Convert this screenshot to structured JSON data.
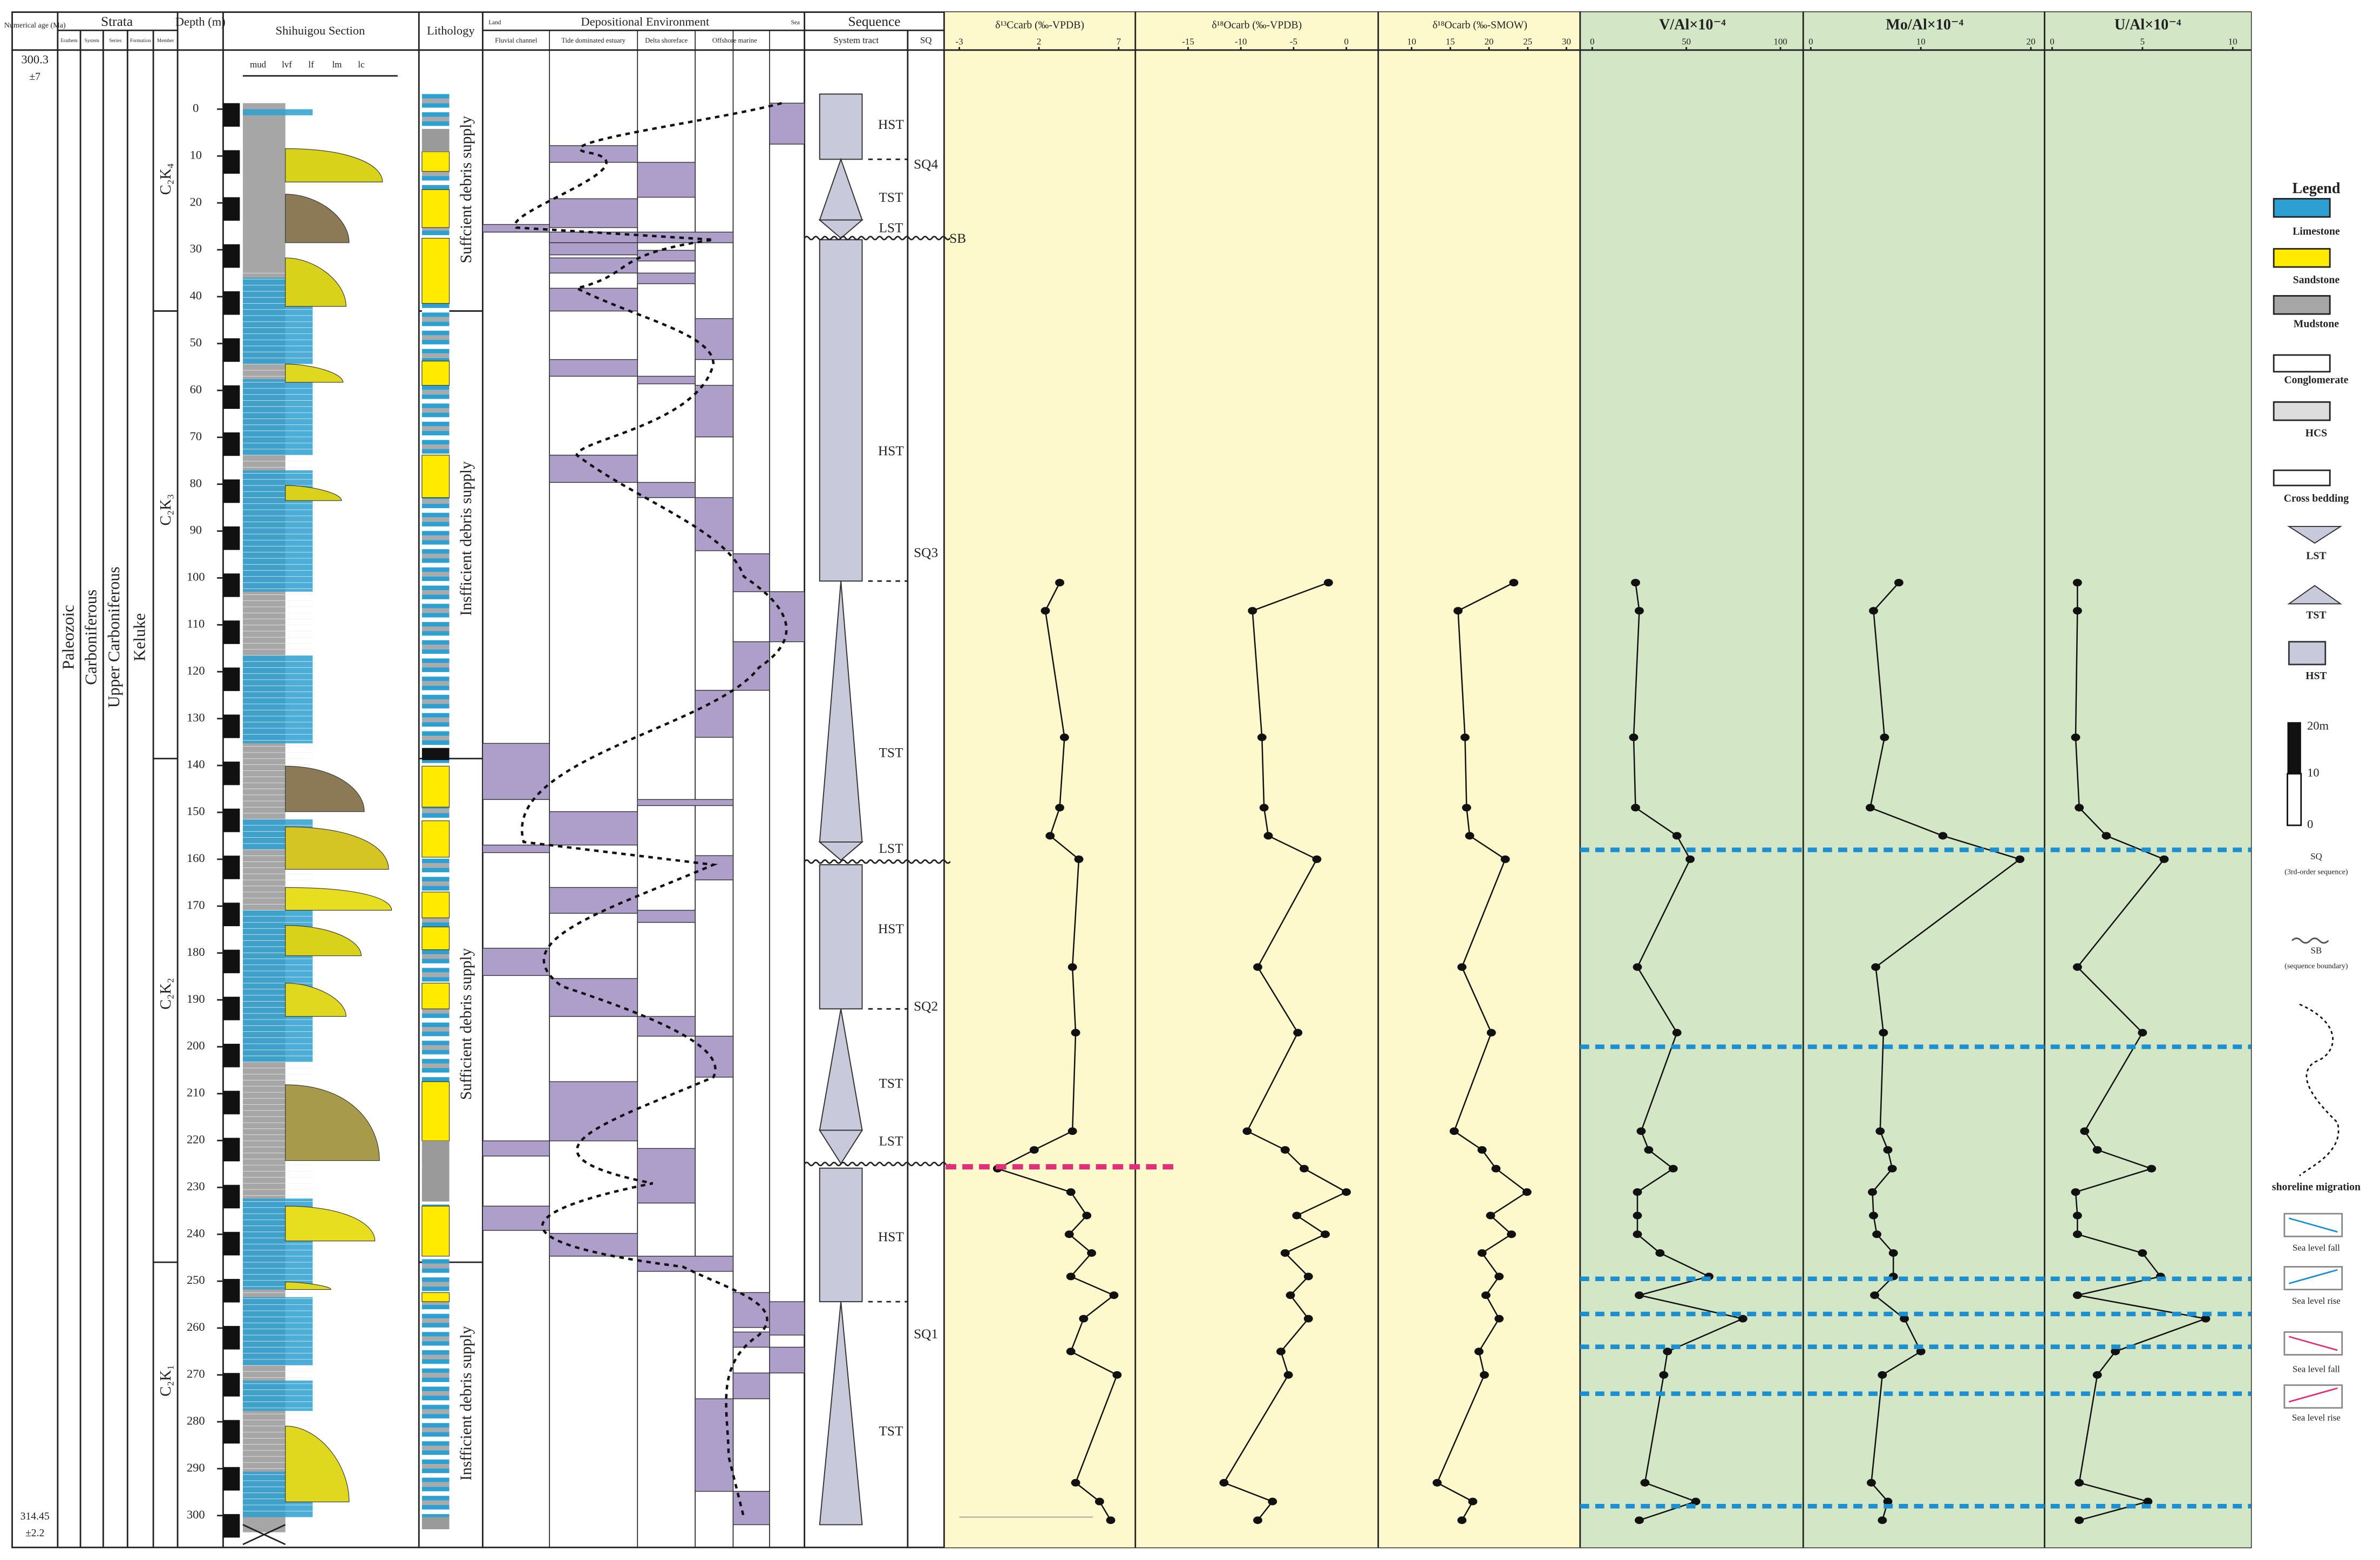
{
  "header": {
    "age": "Numerical age (Ma)",
    "strata": "Strata",
    "strata_sub": [
      "Erathem",
      "System",
      "Series",
      "Formation",
      "Member"
    ],
    "depth": "Depth (m)",
    "section": "Shihuigou Section",
    "grain": [
      "mud",
      "lvf",
      "lf",
      "lm",
      "lc"
    ],
    "lithology": "Lithology",
    "environment": "Depositional Environment",
    "land": "Land",
    "sea": "Sea",
    "environments": [
      "Fluvial channel",
      "Tide dominated estuary",
      "Delta shoreface",
      "Offshore marine"
    ],
    "sequence": "Sequence",
    "system_tract": "System tract",
    "sq": "SQ"
  },
  "ages": {
    "top": "300.3",
    "top_error": "±7",
    "bottom": "314.45",
    "bottom_error": "±2.2"
  },
  "strata": {
    "erathem": "Paleozoic",
    "system": "Carboniferous",
    "series": "Upper Carboniferous",
    "formation": "Keluke",
    "members": [
      "C₂K₄",
      "C₂K₃",
      "C₂K₂",
      "C₂K₁"
    ]
  },
  "supply": [
    "Suffcient debris supply",
    "Insfficient debris supply",
    "Sufficient debris supply",
    "Insfficient debris supply"
  ],
  "tracts": [
    "HST",
    "TST",
    "LST",
    "HST",
    "TST",
    "LST",
    "HST",
    "TST",
    "LST",
    "HST",
    "TST"
  ],
  "sequences": [
    "SQ4",
    "SQ3",
    "SQ2",
    "SQ1"
  ],
  "sb": "SB",
  "depth_axis": {
    "lim": [
      -12.6,
      306.8
    ],
    "ticks": [
      0,
      10,
      20,
      30,
      40,
      50,
      60,
      70,
      80,
      90,
      100,
      110,
      120,
      130,
      140,
      150,
      160,
      170,
      180,
      190,
      200,
      210,
      220,
      230,
      240,
      250,
      260,
      270,
      280,
      290,
      300
    ],
    "samples": [
      101,
      107,
      134,
      149,
      155,
      160,
      183,
      197,
      218,
      222,
      226,
      231,
      236,
      240,
      244,
      249,
      253,
      258,
      265,
      270,
      293,
      297,
      301
    ]
  },
  "horizons": {
    "shift": [
      158,
      200,
      249.5,
      257,
      264,
      274,
      298
    ],
    "shift_color": "#1b8fd0",
    "carbon": 225.6,
    "carbon_color": "#e0307a",
    "boundaries": [
      27.5,
      160.5,
      225
    ]
  },
  "chart_data": [
    {
      "type": "line",
      "title": "δ¹³Ccarb (‰-VPDB)",
      "xlim": [
        -3,
        7
      ],
      "xticks": [
        -3,
        2,
        7
      ],
      "values": [
        3.3,
        2.4,
        3.6,
        3.3,
        2.7,
        4.5,
        4.1,
        4.3,
        4.1,
        1.7,
        -0.6,
        4.0,
        5.0,
        3.9,
        5.3,
        4.0,
        6.7,
        4.8,
        4.0,
        6.9,
        4.3,
        5.8,
        6.5
      ]
    },
    {
      "type": "line",
      "title": "δ¹⁸Ocarb (‰-VPDB)",
      "xlim": [
        -20,
        0
      ],
      "xticks": [
        -15,
        -10,
        -5,
        0
      ],
      "values": [
        -1.7,
        -8.9,
        -8,
        -7.8,
        -7.4,
        -2.8,
        -8.4,
        -4.6,
        -9.4,
        -5.8,
        -4,
        0,
        -4.7,
        -2,
        -5.8,
        -3.6,
        -5.3,
        -3.6,
        -6.2,
        -5.5,
        -11.6,
        -7,
        -8.4
      ]
    },
    {
      "type": "line",
      "title": "δ¹⁸Ocarb (‰-SMOW)",
      "xlim": [
        10,
        30
      ],
      "xticks": [
        10,
        15,
        20,
        25,
        30
      ],
      "values": [
        23.2,
        16,
        16.9,
        17.1,
        17.5,
        22.1,
        16.5,
        20.3,
        15.5,
        19.1,
        20.9,
        24.9,
        20.2,
        22.9,
        19.1,
        21.3,
        19.6,
        21.3,
        18.7,
        19.4,
        13.3,
        17.9,
        16.5
      ]
    },
    {
      "type": "line",
      "title": "V/Al×10⁻⁴",
      "xlim": [
        0,
        100
      ],
      "xticks": [
        0,
        50,
        100
      ],
      "values": [
        23,
        25,
        22,
        23,
        45,
        52,
        24,
        45,
        26,
        30,
        43,
        24,
        24,
        24,
        36,
        62,
        25,
        80,
        40,
        38,
        28,
        55,
        25
      ]
    },
    {
      "type": "line",
      "title": "Mo/Al×10⁻⁴",
      "xlim": [
        0,
        20
      ],
      "xticks": [
        0,
        10,
        20
      ],
      "values": [
        8,
        5.7,
        6.7,
        5.4,
        12,
        19,
        5.9,
        6.6,
        6.3,
        7,
        7.4,
        5.6,
        5.7,
        6,
        7.5,
        7.5,
        5.8,
        8.5,
        10,
        6.5,
        5.5,
        7,
        6.5
      ]
    },
    {
      "type": "line",
      "title": "U/Al×10⁻⁴",
      "xlim": [
        0,
        10
      ],
      "xticks": [
        0,
        5,
        10
      ],
      "values": [
        1.4,
        1.4,
        1.3,
        1.5,
        3,
        6.2,
        1.4,
        5,
        1.8,
        2.5,
        5.5,
        1.3,
        1.4,
        1.4,
        5,
        6,
        1.4,
        8.5,
        3.5,
        2.5,
        1.5,
        5.3,
        1.5
      ]
    }
  ],
  "legend": {
    "title": "Legend",
    "items": [
      "Limestone",
      "Sandstone",
      "Mudstone",
      "Conglomerate",
      "HCS",
      "Cross bedding",
      "LST",
      "TST",
      "HST"
    ],
    "scale": [
      "20m",
      "10",
      "0"
    ],
    "sq": "SQ",
    "sq_note": "(3rd-order sequence)",
    "sb": "SB",
    "sb_note": "(sequence boundary)",
    "shoreline": "shoreline migration",
    "sea_level": [
      "Sea level fall",
      "Sea level rise",
      "Sea level fall",
      "Sea level rise"
    ]
  }
}
